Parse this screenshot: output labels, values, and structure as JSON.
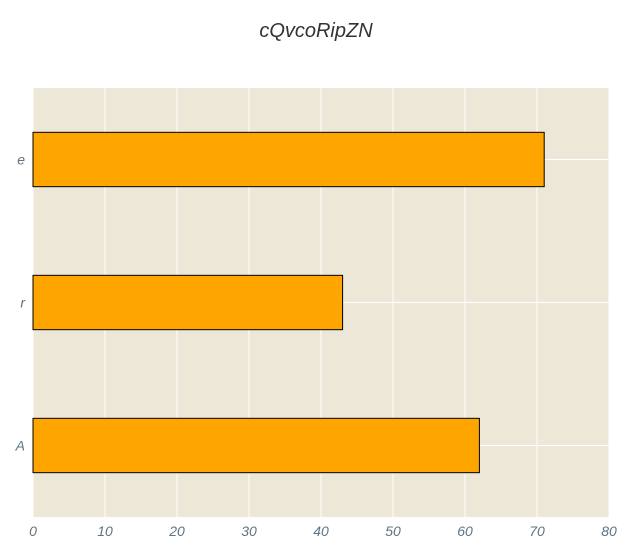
{
  "chart_data": {
    "type": "bar",
    "orientation": "horizontal",
    "title": "cQvcoRipZN",
    "xlabel": "",
    "ylabel": "",
    "categories": [
      "A",
      "r",
      "e"
    ],
    "values": [
      62,
      43,
      71
    ],
    "xlim": [
      0,
      80
    ],
    "xticks": [
      0,
      10,
      20,
      30,
      40,
      50,
      60,
      70,
      80
    ],
    "grid": true,
    "legend": "none",
    "colors": {
      "bar": "#FFA500",
      "bar_edge": "#000000",
      "plot_bg": "#EDE7D7",
      "grid": "#FFFFFF",
      "tick_text": "#5F7382"
    }
  }
}
